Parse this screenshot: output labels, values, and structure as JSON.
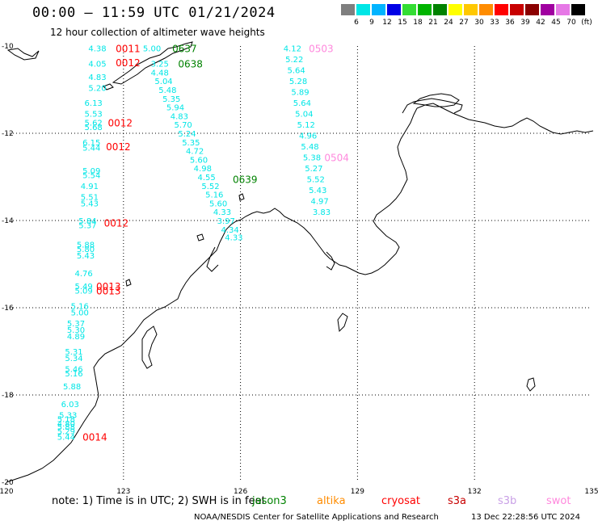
{
  "header": {
    "title": "00:00 – 11:59 UTC 01/21/2024",
    "subtitle": "12 hour collection of altimeter wave heights"
  },
  "legend": {
    "unit": "(ft)",
    "bins": [
      {
        "label": "3",
        "color": "#7f7f7f"
      },
      {
        "label": "6",
        "color": "#00e6e6"
      },
      {
        "label": "9",
        "color": "#00b4ff"
      },
      {
        "label": "12",
        "color": "#0000e6"
      },
      {
        "label": "15",
        "color": "#33dd33"
      },
      {
        "label": "18",
        "color": "#00b400"
      },
      {
        "label": "21",
        "color": "#008200"
      },
      {
        "label": "24",
        "color": "#ffff00"
      },
      {
        "label": "27",
        "color": "#ffc800"
      },
      {
        "label": "30",
        "color": "#ff8c00"
      },
      {
        "label": "33",
        "color": "#ff0000"
      },
      {
        "label": "36",
        "color": "#c80000"
      },
      {
        "label": "39",
        "color": "#8b0000"
      },
      {
        "label": "42",
        "color": "#a000a0"
      },
      {
        "label": "45",
        "color": "#e678e6"
      },
      {
        "label": "70",
        "color": "#000000"
      }
    ]
  },
  "axes": {
    "lon_labels": [
      "120",
      "123",
      "126",
      "129",
      "132",
      "135"
    ],
    "lat_labels": [
      "-10",
      "-12",
      "-14",
      "-16",
      "-18",
      "-20"
    ]
  },
  "wave_color": "#00e6e6",
  "tracks": [
    {
      "name": "track-1",
      "points": [
        {
          "lon": 122.1,
          "lat": -10.05,
          "v": "4.38"
        },
        {
          "lon": 122.1,
          "lat": -10.4,
          "v": "4.05"
        },
        {
          "lon": 122.1,
          "lat": -10.7,
          "v": "4.83"
        },
        {
          "lon": 122.1,
          "lat": -10.95,
          "v": "5.20"
        },
        {
          "lon": 122.0,
          "lat": -11.3,
          "v": "6.13"
        },
        {
          "lon": 122.0,
          "lat": -11.55,
          "v": "5.53"
        },
        {
          "lon": 122.0,
          "lat": -11.75,
          "v": "5.62"
        },
        {
          "lon": 122.0,
          "lat": -11.85,
          "v": "5.68"
        },
        {
          "lon": 121.95,
          "lat": -12.2,
          "v": "6.15"
        },
        {
          "lon": 121.95,
          "lat": -12.32,
          "v": "5.44"
        },
        {
          "lon": 121.95,
          "lat": -12.85,
          "v": "5.09"
        },
        {
          "lon": 121.95,
          "lat": -12.95,
          "v": "5.54"
        },
        {
          "lon": 121.9,
          "lat": -13.2,
          "v": "4.91"
        },
        {
          "lon": 121.9,
          "lat": -13.45,
          "v": "5.51"
        },
        {
          "lon": 121.9,
          "lat": -13.6,
          "v": "5.43"
        },
        {
          "lon": 121.85,
          "lat": -14.0,
          "v": "5.84"
        },
        {
          "lon": 121.85,
          "lat": -14.1,
          "v": "5.37"
        },
        {
          "lon": 121.8,
          "lat": -14.55,
          "v": "5.88"
        },
        {
          "lon": 121.8,
          "lat": -14.65,
          "v": "5.80"
        },
        {
          "lon": 121.8,
          "lat": -14.8,
          "v": "5.43"
        },
        {
          "lon": 121.75,
          "lat": -15.2,
          "v": "4.76"
        },
        {
          "lon": 121.75,
          "lat": -15.5,
          "v": "5.49"
        },
        {
          "lon": 121.75,
          "lat": -15.6,
          "v": "5.09"
        },
        {
          "lon": 121.65,
          "lat": -15.95,
          "v": "5.16"
        },
        {
          "lon": 121.65,
          "lat": -16.1,
          "v": "5.00"
        },
        {
          "lon": 121.55,
          "lat": -16.35,
          "v": "5.37"
        },
        {
          "lon": 121.55,
          "lat": -16.5,
          "v": "5.30"
        },
        {
          "lon": 121.55,
          "lat": -16.65,
          "v": "4.89"
        },
        {
          "lon": 121.5,
          "lat": -17.0,
          "v": "5.31"
        },
        {
          "lon": 121.5,
          "lat": -17.15,
          "v": "5.34"
        },
        {
          "lon": 121.5,
          "lat": -17.4,
          "v": "5.46"
        },
        {
          "lon": 121.5,
          "lat": -17.5,
          "v": "5.16"
        },
        {
          "lon": 121.45,
          "lat": -17.8,
          "v": "5.88"
        },
        {
          "lon": 121.4,
          "lat": -18.2,
          "v": "6.03"
        },
        {
          "lon": 121.35,
          "lat": -18.45,
          "v": "5.33"
        },
        {
          "lon": 121.3,
          "lat": -18.55,
          "v": "5.18"
        },
        {
          "lon": 121.3,
          "lat": -18.65,
          "v": "4.80"
        },
        {
          "lon": 121.3,
          "lat": -18.72,
          "v": "5.88"
        },
        {
          "lon": 121.3,
          "lat": -18.82,
          "v": "5.29"
        },
        {
          "lon": 121.3,
          "lat": -18.95,
          "v": "5.44"
        }
      ],
      "times": [
        {
          "lon": 122.8,
          "lat": -10.05,
          "t": "0011"
        },
        {
          "lon": 122.8,
          "lat": -10.37,
          "t": "0012"
        },
        {
          "lon": 122.6,
          "lat": -11.75,
          "t": "0012"
        },
        {
          "lon": 122.55,
          "lat": -12.3,
          "t": "0012"
        },
        {
          "lon": 122.5,
          "lat": -14.05,
          "t": "0012"
        },
        {
          "lon": 122.3,
          "lat": -15.5,
          "t": "0013"
        },
        {
          "lon": 122.3,
          "lat": -15.6,
          "t": "0013"
        },
        {
          "lon": 121.95,
          "lat": -18.95,
          "t": "0014"
        }
      ]
    },
    {
      "name": "track-2",
      "points": [
        {
          "lon": 123.5,
          "lat": -10.05,
          "v": "5.00"
        },
        {
          "lon": 123.7,
          "lat": -10.4,
          "v": "3.25"
        },
        {
          "lon": 123.7,
          "lat": -10.6,
          "v": "4.48"
        },
        {
          "lon": 123.8,
          "lat": -10.8,
          "v": "5.04"
        },
        {
          "lon": 123.9,
          "lat": -11.0,
          "v": "5.48"
        },
        {
          "lon": 124.0,
          "lat": -11.2,
          "v": "5.35"
        },
        {
          "lon": 124.1,
          "lat": -11.4,
          "v": "5.94"
        },
        {
          "lon": 124.2,
          "lat": -11.6,
          "v": "4.83"
        },
        {
          "lon": 124.3,
          "lat": -11.8,
          "v": "5.70"
        },
        {
          "lon": 124.4,
          "lat": -12.0,
          "v": "5.24"
        },
        {
          "lon": 124.5,
          "lat": -12.2,
          "v": "5.35"
        },
        {
          "lon": 124.6,
          "lat": -12.4,
          "v": "4.72"
        },
        {
          "lon": 124.7,
          "lat": -12.6,
          "v": "5.60"
        },
        {
          "lon": 124.8,
          "lat": -12.8,
          "v": "4.98"
        },
        {
          "lon": 124.9,
          "lat": -13.0,
          "v": "4.55"
        },
        {
          "lon": 125.0,
          "lat": -13.2,
          "v": "5.52"
        },
        {
          "lon": 125.1,
          "lat": -13.4,
          "v": "5.16"
        },
        {
          "lon": 125.2,
          "lat": -13.6,
          "v": "5.60"
        },
        {
          "lon": 125.3,
          "lat": -13.8,
          "v": "4.33"
        },
        {
          "lon": 125.4,
          "lat": -14.0,
          "v": "3.97"
        },
        {
          "lon": 125.5,
          "lat": -14.2,
          "v": "4.34"
        },
        {
          "lon": 125.6,
          "lat": -14.38,
          "v": "4.33"
        }
      ],
      "times": [
        {
          "lon": 124.25,
          "lat": -10.05,
          "t": "0637"
        },
        {
          "lon": 124.4,
          "lat": -10.4,
          "t": "0638"
        },
        {
          "lon": 125.8,
          "lat": -13.05,
          "t": "0639"
        }
      ]
    },
    {
      "name": "track-3",
      "points": [
        {
          "lon": 127.1,
          "lat": -10.05,
          "v": "4.12"
        },
        {
          "lon": 127.15,
          "lat": -10.3,
          "v": "5.22"
        },
        {
          "lon": 127.2,
          "lat": -10.55,
          "v": "5.64"
        },
        {
          "lon": 127.25,
          "lat": -10.8,
          "v": "5.28"
        },
        {
          "lon": 127.3,
          "lat": -11.05,
          "v": "5.89"
        },
        {
          "lon": 127.35,
          "lat": -11.3,
          "v": "5.64"
        },
        {
          "lon": 127.4,
          "lat": -11.55,
          "v": "5.04"
        },
        {
          "lon": 127.45,
          "lat": -11.8,
          "v": "5.12"
        },
        {
          "lon": 127.5,
          "lat": -12.05,
          "v": "4.96"
        },
        {
          "lon": 127.55,
          "lat": -12.3,
          "v": "5.48"
        },
        {
          "lon": 127.6,
          "lat": -12.55,
          "v": "5.38"
        },
        {
          "lon": 127.65,
          "lat": -12.8,
          "v": "5.27"
        },
        {
          "lon": 127.7,
          "lat": -13.05,
          "v": "5.52"
        },
        {
          "lon": 127.75,
          "lat": -13.3,
          "v": "5.43"
        },
        {
          "lon": 127.8,
          "lat": -13.55,
          "v": "4.97"
        },
        {
          "lon": 127.85,
          "lat": -13.8,
          "v": "3.83"
        }
      ],
      "times": [
        {
          "lon": 127.75,
          "lat": -10.05,
          "t": "0503"
        },
        {
          "lon": 128.15,
          "lat": -12.55,
          "t": "0504"
        }
      ]
    }
  ],
  "time_colors": {
    "track-1": "#ff0000",
    "track-2": "#008200",
    "track-3": "#ff88dd"
  },
  "note": "note: 1) Time is in UTC; 2) SWH is in feet",
  "satellites": [
    {
      "name": "jason3",
      "color": "#008200",
      "offset": 0
    },
    {
      "name": "altika",
      "color": "#ff8c00",
      "offset": 80
    },
    {
      "name": "cryosat",
      "color": "#ff0000",
      "offset": 160
    },
    {
      "name": "s3a",
      "color": "#c80000",
      "offset": 242
    },
    {
      "name": "s3b",
      "color": "#c9a0e6",
      "offset": 304
    },
    {
      "name": "swot",
      "color": "#ff88dd",
      "offset": 364
    }
  ],
  "footer": {
    "org": "NOAA/NESDIS Center for Satellite Applications and Research",
    "date": "13 Dec 22:28:56 UTC 2024"
  }
}
